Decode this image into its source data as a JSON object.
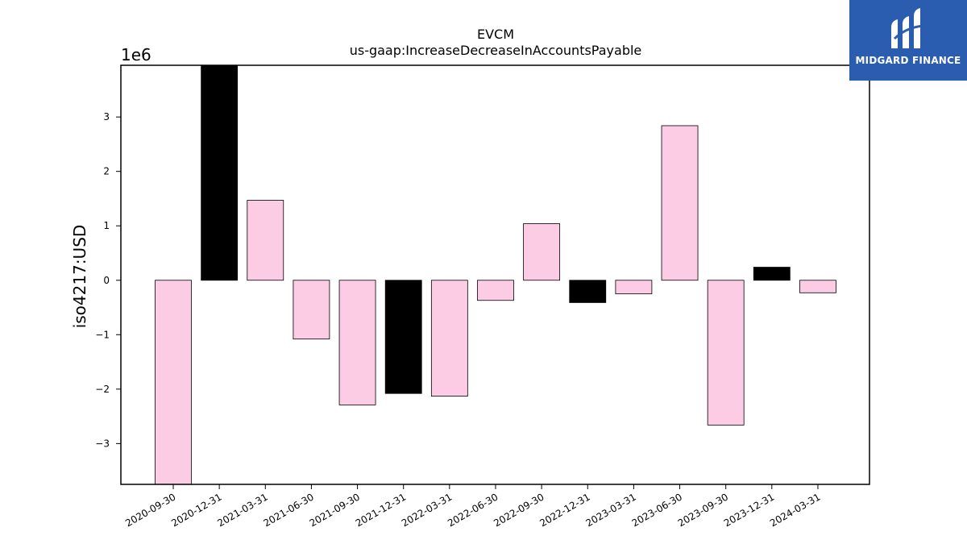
{
  "brand": {
    "name": "MIDGARD FINANCE",
    "logo_icon": "midgard-logo-icon",
    "background_color": "#2a5db0"
  },
  "chart_data": {
    "type": "bar",
    "title": "EVCM",
    "subtitle": "us-gaap:IncreaseDecreaseInAccountsPayable",
    "xlabel": "",
    "ylabel": "iso4217:USD",
    "y_multiplier_label": "1e6",
    "ylim": [
      -3.75,
      3.95
    ],
    "yticks": [
      -3,
      -2,
      -1,
      0,
      1,
      2,
      3
    ],
    "ytick_labels": [
      "−3",
      "−2",
      "−1",
      "0",
      "1",
      "2",
      "3"
    ],
    "categories": [
      "2020-09-30",
      "2020-12-31",
      "2021-03-31",
      "2021-06-30",
      "2021-09-30",
      "2021-12-31",
      "2022-03-31",
      "2022-06-30",
      "2022-09-30",
      "2022-12-31",
      "2023-03-31",
      "2023-06-30",
      "2023-09-30",
      "2023-12-31",
      "2024-03-31"
    ],
    "values": [
      -3.75,
      3.95,
      1.47,
      -1.08,
      -2.29,
      -2.08,
      -2.13,
      -0.37,
      1.04,
      -0.41,
      -0.25,
      2.84,
      -2.66,
      0.24,
      -0.23
    ],
    "bar_colors": [
      "#fccbe4",
      "#000000",
      "#fccbe4",
      "#fccbe4",
      "#fccbe4",
      "#000000",
      "#fccbe4",
      "#fccbe4",
      "#fccbe4",
      "#000000",
      "#fccbe4",
      "#fccbe4",
      "#fccbe4",
      "#000000",
      "#fccbe4"
    ],
    "grid": false,
    "legend": "none"
  }
}
